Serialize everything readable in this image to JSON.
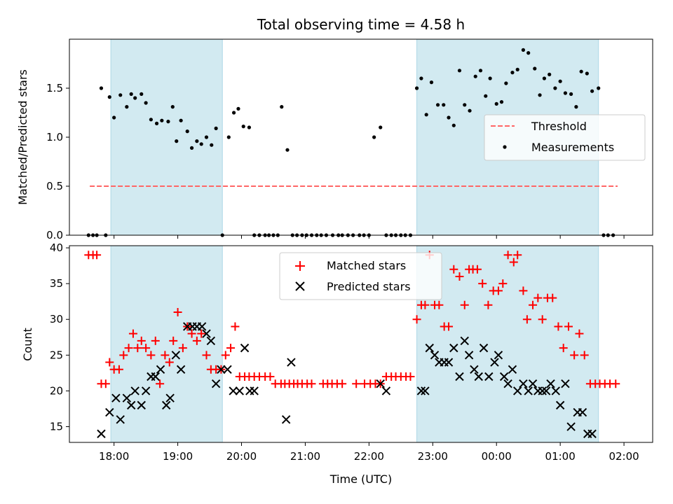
{
  "title": "Total observing time = 4.58 h",
  "colors": {
    "shade": "#add8e6",
    "threshold": "#ff6666",
    "matched": "#ff0000",
    "predicted": "#000000",
    "measurement": "#000000"
  },
  "chart_data": [
    {
      "type": "scatter",
      "name": "ratio-panel",
      "ylabel": "Matched/Predicted stars",
      "xlim_hours": [
        17.3,
        26.45
      ],
      "ylim": [
        0,
        2.0
      ],
      "y_ticks": [
        0.0,
        0.5,
        1.0,
        1.5
      ],
      "y_tick_labels": [
        "0.0",
        "0.5",
        "1.0",
        "1.5"
      ],
      "grid": false,
      "legend_position": "center-right",
      "legend": [
        {
          "label": "Threshold",
          "style": "dashed-line"
        },
        {
          "label": "Measurements",
          "style": "dot"
        }
      ],
      "threshold": {
        "y": 0.5,
        "x_range_hours": [
          17.62,
          25.9
        ]
      },
      "shaded_spans_hours": [
        [
          17.95,
          19.7
        ],
        [
          22.75,
          25.6
        ]
      ],
      "series": [
        {
          "name": "Measurements",
          "x_hours": [
            17.6,
            17.67,
            17.73,
            17.8,
            17.87,
            17.93,
            18.0,
            18.1,
            18.2,
            18.27,
            18.33,
            18.43,
            18.5,
            18.58,
            18.67,
            18.75,
            18.85,
            18.92,
            18.98,
            19.05,
            19.15,
            19.22,
            19.3,
            19.37,
            19.45,
            19.53,
            19.6,
            19.7,
            19.8,
            19.88,
            19.95,
            20.03,
            20.12,
            20.2,
            20.28,
            20.37,
            20.43,
            20.5,
            20.57,
            20.63,
            20.72,
            20.8,
            20.87,
            20.95,
            21.02,
            21.1,
            21.18,
            21.25,
            21.33,
            21.43,
            21.52,
            21.58,
            21.67,
            21.75,
            21.85,
            21.92,
            22.0,
            22.08,
            22.18,
            22.27,
            22.35,
            22.42,
            22.5,
            22.57,
            22.65,
            22.75,
            22.82,
            22.9,
            22.98,
            23.08,
            23.17,
            23.25,
            23.33,
            23.42,
            23.5,
            23.58,
            23.67,
            23.75,
            23.83,
            23.9,
            24.0,
            24.08,
            24.15,
            24.25,
            24.33,
            24.42,
            24.5,
            24.6,
            24.68,
            24.75,
            24.83,
            24.92,
            25.0,
            25.08,
            25.17,
            25.25,
            25.33,
            25.42,
            25.5,
            25.6,
            25.68,
            25.75,
            25.83
          ],
          "y": [
            0.0,
            0.0,
            0.0,
            1.5,
            0.0,
            1.41,
            1.2,
            1.43,
            1.31,
            1.44,
            1.4,
            1.44,
            1.35,
            1.18,
            1.14,
            1.17,
            1.16,
            1.31,
            0.96,
            1.17,
            1.06,
            0.89,
            0.96,
            0.93,
            1.0,
            0.92,
            1.09,
            0.0,
            1.0,
            1.25,
            1.29,
            1.11,
            1.1,
            0.0,
            0.0,
            0.0,
            0.0,
            0.0,
            0.0,
            1.31,
            0.87,
            0.0,
            0.0,
            0.0,
            0.0,
            0.0,
            0.0,
            0.0,
            0.0,
            0.0,
            0.0,
            0.0,
            0.0,
            0.0,
            0.0,
            0.0,
            0.0,
            1.0,
            1.1,
            0.0,
            0.0,
            0.0,
            0.0,
            0.0,
            0.0,
            1.5,
            1.6,
            1.23,
            1.56,
            1.33,
            1.33,
            1.2,
            1.12,
            1.68,
            1.33,
            1.27,
            1.62,
            1.68,
            1.42,
            1.6,
            1.34,
            1.36,
            1.55,
            1.66,
            1.69,
            1.89,
            1.86,
            1.7,
            1.43,
            1.6,
            1.64,
            1.5,
            1.57,
            1.45,
            1.44,
            1.31,
            1.67,
            1.65,
            1.47,
            1.5,
            0.0,
            0.0,
            0.0
          ]
        }
      ]
    },
    {
      "type": "scatter",
      "name": "count-panel",
      "xlabel": "Time (UTC)",
      "ylabel": "Count",
      "xlim_hours": [
        17.3,
        26.45
      ],
      "ylim": [
        12.8,
        40.3
      ],
      "y_ticks": [
        15,
        20,
        25,
        30,
        35,
        40
      ],
      "y_tick_labels": [
        "15",
        "20",
        "25",
        "30",
        "35",
        "40"
      ],
      "x_ticks_hours": [
        18,
        19,
        20,
        21,
        22,
        23,
        24,
        25,
        26
      ],
      "x_tick_labels": [
        "18:00",
        "19:00",
        "20:00",
        "21:00",
        "22:00",
        "23:00",
        "00:00",
        "01:00",
        "02:00"
      ],
      "grid": false,
      "legend_position": "top-center",
      "legend": [
        {
          "label": "Matched stars",
          "style": "plus"
        },
        {
          "label": "Predicted stars",
          "style": "x"
        }
      ],
      "shaded_spans_hours": [
        [
          17.95,
          19.7
        ],
        [
          22.75,
          25.6
        ]
      ],
      "series": [
        {
          "name": "Matched stars",
          "x_hours": [
            17.6,
            17.67,
            17.73,
            17.8,
            17.87,
            17.93,
            18.0,
            18.08,
            18.15,
            18.23,
            18.3,
            18.37,
            18.43,
            18.5,
            18.58,
            18.65,
            18.72,
            18.8,
            18.87,
            18.93,
            19.0,
            19.08,
            19.15,
            19.22,
            19.3,
            19.37,
            19.45,
            19.52,
            19.6,
            19.68,
            19.75,
            19.83,
            19.9,
            19.97,
            20.05,
            20.12,
            20.2,
            20.28,
            20.37,
            20.45,
            20.53,
            20.62,
            20.68,
            20.75,
            20.82,
            20.88,
            20.95,
            21.03,
            21.1,
            21.28,
            21.35,
            21.42,
            21.5,
            21.58,
            21.8,
            21.93,
            22.02,
            22.1,
            22.18,
            22.27,
            22.35,
            22.42,
            22.5,
            22.58,
            22.65,
            22.75,
            22.82,
            22.88,
            22.95,
            23.03,
            23.1,
            23.18,
            23.25,
            23.33,
            23.42,
            23.5,
            23.57,
            23.63,
            23.7,
            23.78,
            23.87,
            23.95,
            24.03,
            24.1,
            24.18,
            24.27,
            24.33,
            24.42,
            24.48,
            24.57,
            24.65,
            24.72,
            24.8,
            24.88,
            24.97,
            25.05,
            25.13,
            25.22,
            25.3,
            25.38,
            25.47,
            25.55,
            25.62,
            25.7,
            25.78,
            25.87
          ],
          "y": [
            39,
            39,
            39,
            21,
            21,
            24,
            23,
            23,
            25,
            26,
            28,
            26,
            27,
            26,
            25,
            27,
            21,
            25,
            24,
            27,
            31,
            26,
            29,
            28,
            27,
            28,
            25,
            23,
            23,
            23,
            25,
            26,
            29,
            22,
            22,
            22,
            22,
            22,
            22,
            22,
            21,
            21,
            21,
            21,
            21,
            21,
            21,
            21,
            21,
            21,
            21,
            21,
            21,
            21,
            21,
            21,
            21,
            21,
            21,
            22,
            22,
            22,
            22,
            22,
            22,
            30,
            32,
            32,
            39,
            32,
            32,
            29,
            29,
            37,
            36,
            32,
            37,
            37,
            37,
            35,
            32,
            34,
            34,
            35,
            39,
            38,
            39,
            34,
            30,
            32,
            33,
            30,
            33,
            33,
            29,
            26,
            29,
            25,
            28,
            25,
            21,
            21,
            21,
            21,
            21,
            21
          ]
        },
        {
          "name": "Predicted stars",
          "x_hours": [
            17.8,
            17.93,
            18.03,
            18.1,
            18.2,
            18.27,
            18.33,
            18.43,
            18.5,
            18.58,
            18.65,
            18.73,
            18.82,
            18.88,
            18.97,
            19.05,
            19.15,
            19.23,
            19.3,
            19.38,
            19.45,
            19.52,
            19.6,
            19.68,
            19.78,
            19.87,
            19.97,
            20.05,
            20.13,
            20.2,
            20.7,
            20.78,
            22.18,
            22.27,
            22.82,
            22.88,
            22.95,
            23.03,
            23.1,
            23.18,
            23.25,
            23.33,
            23.42,
            23.5,
            23.57,
            23.65,
            23.72,
            23.8,
            23.88,
            23.97,
            24.03,
            24.12,
            24.18,
            24.25,
            24.33,
            24.42,
            24.5,
            24.57,
            24.65,
            24.72,
            24.78,
            24.85,
            24.93,
            25.0,
            25.08,
            25.17,
            25.27,
            25.35,
            25.43,
            25.5
          ],
          "y": [
            14,
            17,
            19,
            16,
            19,
            18,
            20,
            18,
            20,
            22,
            22,
            23,
            18,
            19,
            25,
            23,
            29,
            29,
            29,
            29,
            28,
            27,
            21,
            23,
            23,
            20,
            20,
            26,
            20,
            20,
            16,
            24,
            21,
            20,
            20,
            20,
            26,
            25,
            24,
            24,
            24,
            26,
            22,
            27,
            25,
            23,
            22,
            26,
            22,
            24,
            25,
            22,
            21,
            23,
            20,
            21,
            20,
            21,
            20,
            20,
            20,
            21,
            20,
            18,
            21,
            15,
            17,
            17,
            14,
            14
          ]
        }
      ]
    }
  ]
}
